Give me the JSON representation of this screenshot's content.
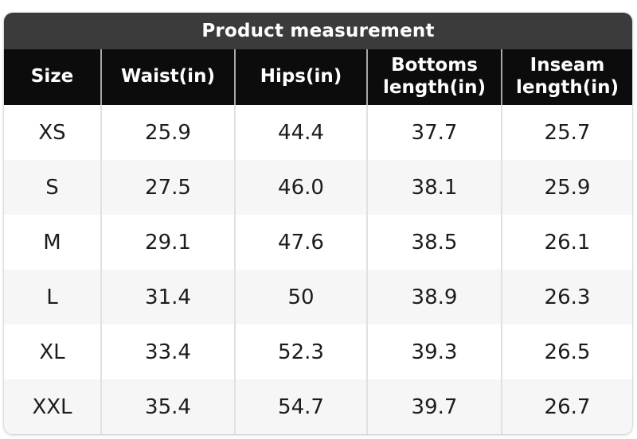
{
  "header": {
    "title": "Product measurement"
  },
  "chart_data": {
    "type": "table",
    "title": "Product measurement",
    "columns": [
      "Size",
      "Waist(in)",
      "Hips(in)",
      "Bottoms length(in)",
      "Inseam length(in)"
    ],
    "rows": [
      [
        "XS",
        "25.9",
        "44.4",
        "37.7",
        "25.7"
      ],
      [
        "S",
        "27.5",
        "46.0",
        "38.1",
        "25.9"
      ],
      [
        "M",
        "29.1",
        "47.6",
        "38.5",
        "26.1"
      ],
      [
        "L",
        "31.4",
        "50",
        "38.9",
        "26.3"
      ],
      [
        "XL",
        "33.4",
        "52.3",
        "39.3",
        "26.5"
      ],
      [
        "XXL",
        "35.4",
        "54.7",
        "39.7",
        "26.7"
      ]
    ]
  },
  "colors": {
    "title_bar_bg": "#3b3b3b",
    "title_text": "#ffffff",
    "header_bg": "#0c0c0c",
    "header_text": "#ffffff",
    "row_bg": "#ffffff",
    "row_alt_bg": "#f6f6f6",
    "body_text": "#1c1c1c",
    "body_divider": "#e0e0e0",
    "header_divider": "#a8a8a8"
  }
}
